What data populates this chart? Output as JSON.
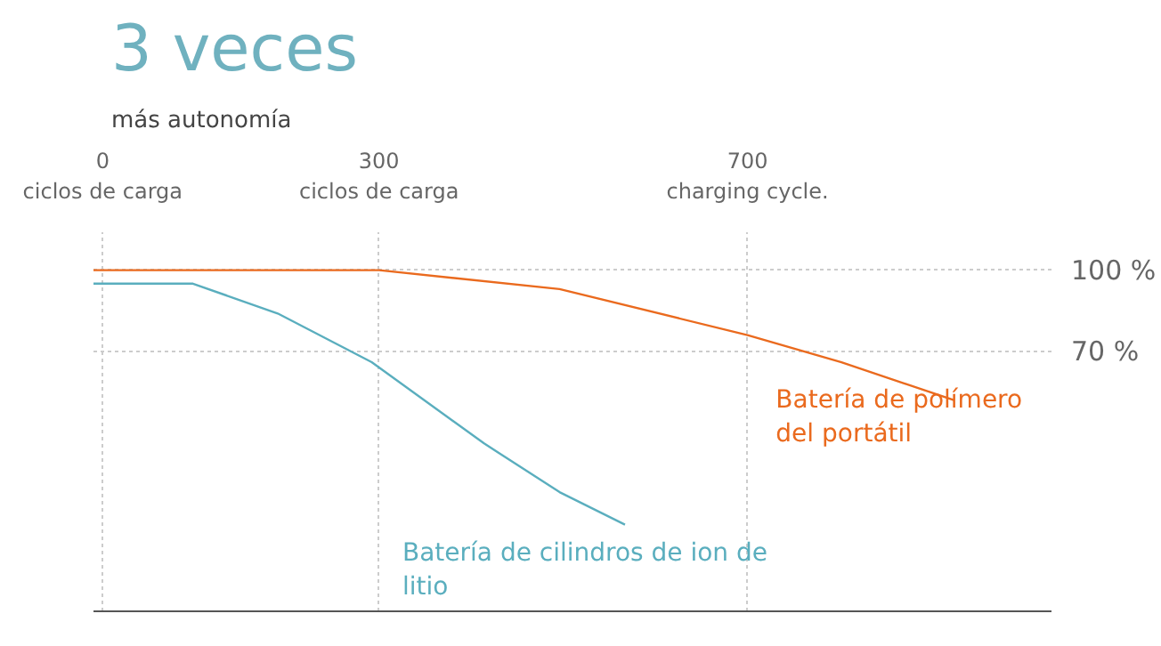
{
  "chart_data": {
    "type": "line",
    "title": "3 veces",
    "subtitle": "más autonomía",
    "xlim": [
      -10,
      1030
    ],
    "ylim": [
      -26,
      114
    ],
    "xticks": [
      {
        "value": 0,
        "label": "0\nciclos de carga"
      },
      {
        "value": 300,
        "label": "300\nciclos de carga"
      },
      {
        "value": 700,
        "label": "700\ncharging cycle."
      }
    ],
    "yticks": [
      {
        "value": 70,
        "label": "70 %"
      },
      {
        "value": 100,
        "label": "100 %"
      }
    ],
    "grid": true,
    "line_style": "solid",
    "marker": "none",
    "legend": false,
    "series": [
      {
        "name": "Batería de cilindros de ion de litio",
        "color": "#5aaebe",
        "x": [
          -10,
          98,
          190,
          292,
          414,
          496,
          567
        ],
        "values": [
          95,
          95,
          84,
          66,
          36,
          18,
          6
        ]
      },
      {
        "name": "Batería de polímero del portátil",
        "color": "#ea6a1e",
        "x": [
          -10,
          150,
          300,
          496,
          700,
          802,
          924
        ],
        "values": [
          100,
          100,
          100,
          93,
          76,
          66,
          52
        ]
      }
    ]
  }
}
